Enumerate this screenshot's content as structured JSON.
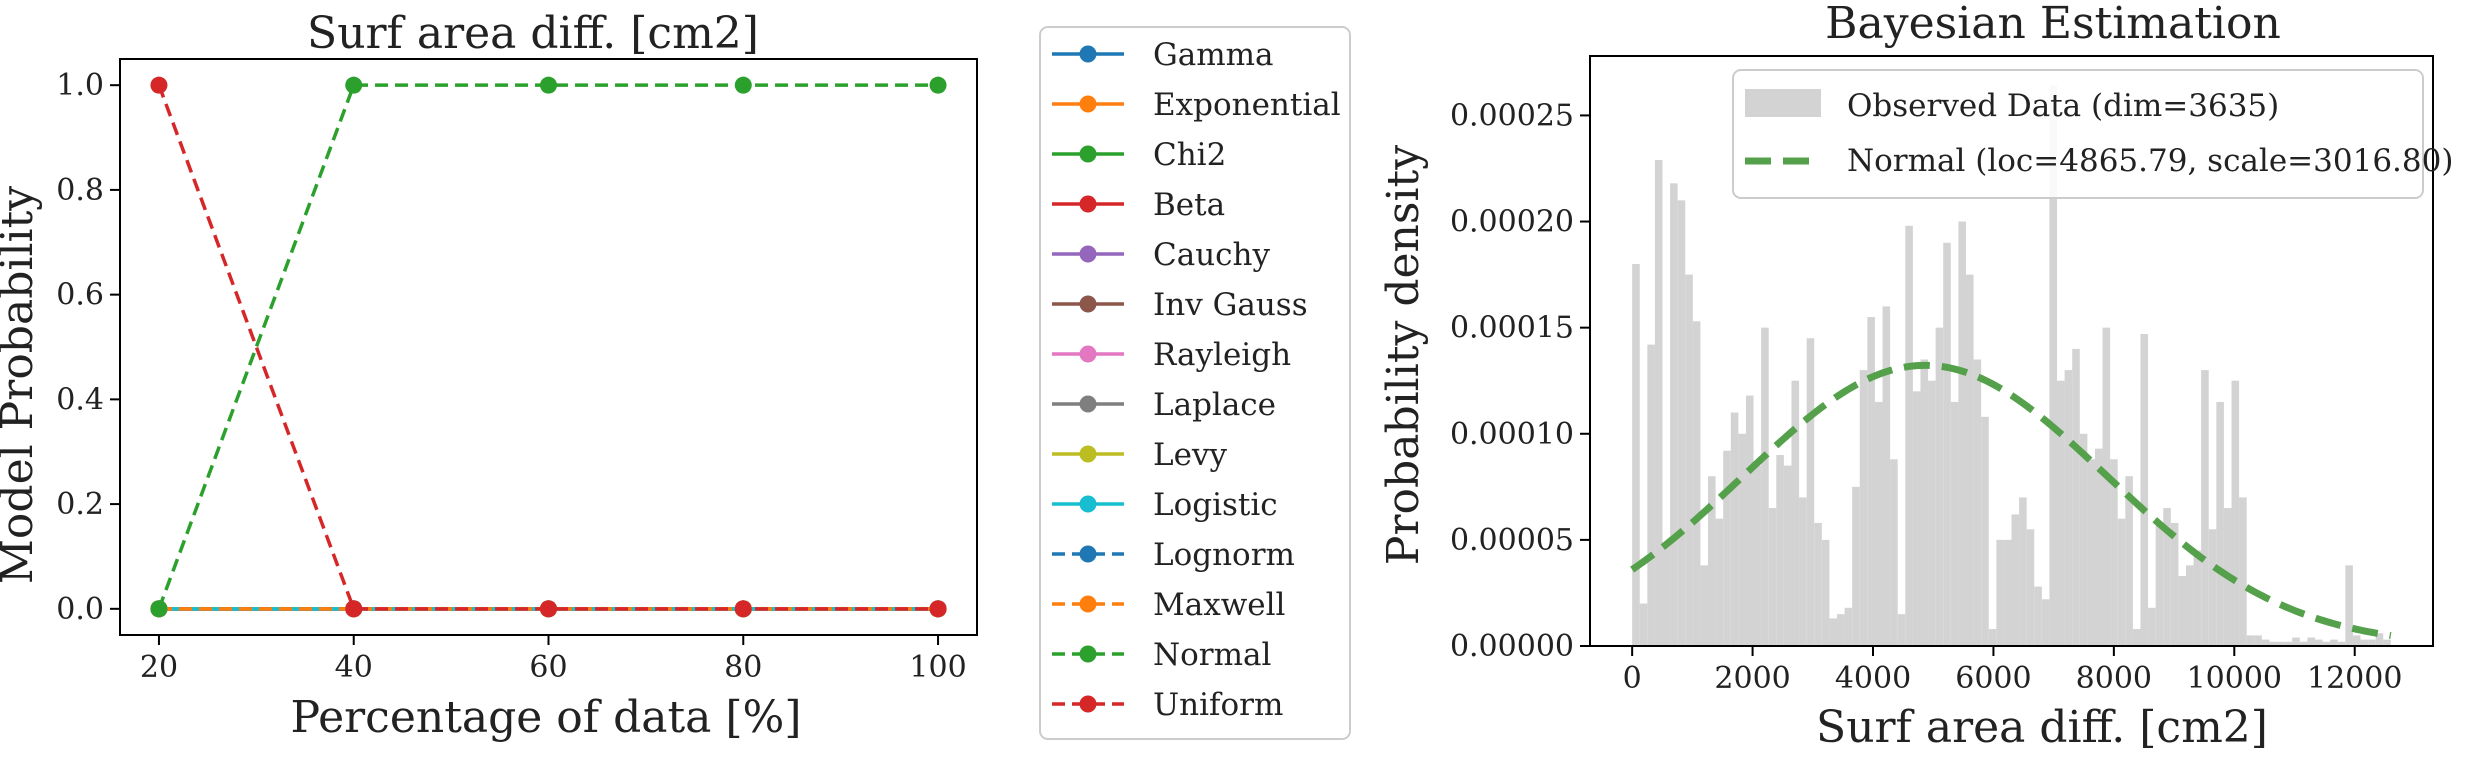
{
  "chart_data": [
    {
      "type": "line",
      "title": "Surf area diff. [cm2]",
      "xlabel": "Percentage of data [%]",
      "ylabel": "Model Probability",
      "x": [
        20,
        40,
        60,
        80,
        100
      ],
      "xlim": [
        16,
        104
      ],
      "ylim": [
        -0.05,
        1.05
      ],
      "xticks": [
        20,
        40,
        60,
        80,
        100
      ],
      "yticks": [
        0.0,
        0.2,
        0.4,
        0.6,
        0.8,
        1.0
      ],
      "xtick_labels": [
        "20",
        "40",
        "60",
        "80",
        "100"
      ],
      "ytick_labels": [
        "0.0",
        "0.2",
        "0.4",
        "0.6",
        "0.8",
        "1.0"
      ],
      "legend_placement": "outside-right",
      "series": [
        {
          "name": "Gamma",
          "color": "#1f77b4",
          "linestyle": "solid",
          "values": [
            0,
            0,
            0,
            0,
            0
          ]
        },
        {
          "name": "Exponential",
          "color": "#ff7f0e",
          "linestyle": "solid",
          "values": [
            0,
            0,
            0,
            0,
            0
          ]
        },
        {
          "name": "Chi2",
          "color": "#2ca02c",
          "linestyle": "solid",
          "values": [
            0,
            0,
            0,
            0,
            0
          ]
        },
        {
          "name": "Beta",
          "color": "#d62728",
          "linestyle": "solid",
          "values": [
            0,
            0,
            0,
            0,
            0
          ]
        },
        {
          "name": "Cauchy",
          "color": "#9467bd",
          "linestyle": "solid",
          "values": [
            0,
            0,
            0,
            0,
            0
          ]
        },
        {
          "name": "Inv Gauss",
          "color": "#8c564b",
          "linestyle": "solid",
          "values": [
            0,
            0,
            0,
            0,
            0
          ]
        },
        {
          "name": "Rayleigh",
          "color": "#e377c2",
          "linestyle": "solid",
          "values": [
            0,
            0,
            0,
            0,
            0
          ]
        },
        {
          "name": "Laplace",
          "color": "#7f7f7f",
          "linestyle": "solid",
          "values": [
            0,
            0,
            0,
            0,
            0
          ]
        },
        {
          "name": "Levy",
          "color": "#bcbd22",
          "linestyle": "solid",
          "values": [
            0,
            0,
            0,
            0,
            0
          ]
        },
        {
          "name": "Logistic",
          "color": "#17becf",
          "linestyle": "solid",
          "values": [
            0,
            0,
            0,
            0,
            0
          ]
        },
        {
          "name": "Lognorm",
          "color": "#1f77b4",
          "linestyle": "dashed",
          "values": [
            0,
            0,
            0,
            0,
            0
          ]
        },
        {
          "name": "Maxwell",
          "color": "#ff7f0e",
          "linestyle": "dashed",
          "values": [
            0,
            0,
            0,
            0,
            0
          ]
        },
        {
          "name": "Normal",
          "color": "#2ca02c",
          "linestyle": "dashed",
          "values": [
            0,
            1,
            1,
            1,
            1
          ]
        },
        {
          "name": "Uniform",
          "color": "#d62728",
          "linestyle": "dashed",
          "values": [
            1,
            0,
            0,
            0,
            0
          ]
        }
      ]
    },
    {
      "type": "bar",
      "title": "Bayesian Estimation",
      "xlabel": "Surf area diff. [cm2]",
      "ylabel": "Probability density",
      "xlim": [
        -700,
        13300
      ],
      "ylim": [
        0,
        0.000278
      ],
      "xticks": [
        0,
        2000,
        4000,
        6000,
        8000,
        10000,
        12000
      ],
      "yticks": [
        0,
        5e-05,
        0.0001,
        0.00015,
        0.0002,
        0.00025
      ],
      "xtick_labels": [
        "0",
        "2000",
        "4000",
        "6000",
        "8000",
        "10000",
        "12000"
      ],
      "ytick_labels": [
        "0.00000",
        "0.00005",
        "0.00010",
        "0.00015",
        "0.00020",
        "0.00025"
      ],
      "legend_placement": "top-right",
      "histogram": {
        "name": "Observed Data (dim=3635)",
        "color": "#d3d3d3",
        "bin_start": 0,
        "bin_width": 126,
        "values": [
          0.00018,
          2e-05,
          0.000142,
          0.000229,
          4.8e-05,
          0.000218,
          0.00021,
          0.000175,
          0.000153,
          3.8e-05,
          8e-05,
          6e-05,
          9.2e-05,
          0.00011,
          0.0001,
          0.000118,
          8.5e-05,
          0.00015,
          6.5e-05,
          9e-05,
          8.5e-05,
          0.000125,
          7e-05,
          0.000145,
          5.8e-05,
          5e-05,
          1.3e-05,
          1.5e-05,
          1.8e-05,
          7.5e-05,
          0.00013,
          0.000155,
          0.000115,
          0.00016,
          8.8e-05,
          1.5e-05,
          0.000198,
          0.00012,
          0.000135,
          0.000125,
          0.00015,
          0.00019,
          0.000115,
          0.0002,
          0.000175,
          0.000135,
          0.000108,
          8e-06,
          5e-05,
          5e-05,
          6.2e-05,
          7e-05,
          5.5e-05,
          2.8e-05,
          2.2e-05,
          0.000264,
          0.000125,
          0.00013,
          0.00014,
          0.0001,
          8.8e-05,
          9.3e-05,
          0.00015,
          8.8e-05,
          6e-05,
          8e-05,
          8e-06,
          0.000147,
          1.8e-05,
          5.8e-05,
          6.5e-05,
          5.8e-05,
          3.3e-05,
          3.8e-05,
          4.5e-05,
          0.00013,
          5.5e-05,
          0.000115,
          6.5e-05,
          0.000125,
          7e-05,
          5e-06,
          5e-06,
          3e-06,
          2e-06,
          2e-06,
          2e-06,
          4e-06,
          2e-06,
          4e-06,
          3e-06,
          2e-06,
          3e-06,
          2e-06,
          3.8e-05,
          5e-06,
          3e-06,
          3e-06,
          6e-06,
          3e-06
        ]
      },
      "fit": {
        "name": "Normal (loc=4865.79, scale=3016.80)",
        "color": "#55a04a",
        "linestyle": "dashed",
        "loc": 4865.79,
        "scale": 3016.8,
        "x_range": [
          0,
          12600
        ]
      }
    }
  ]
}
